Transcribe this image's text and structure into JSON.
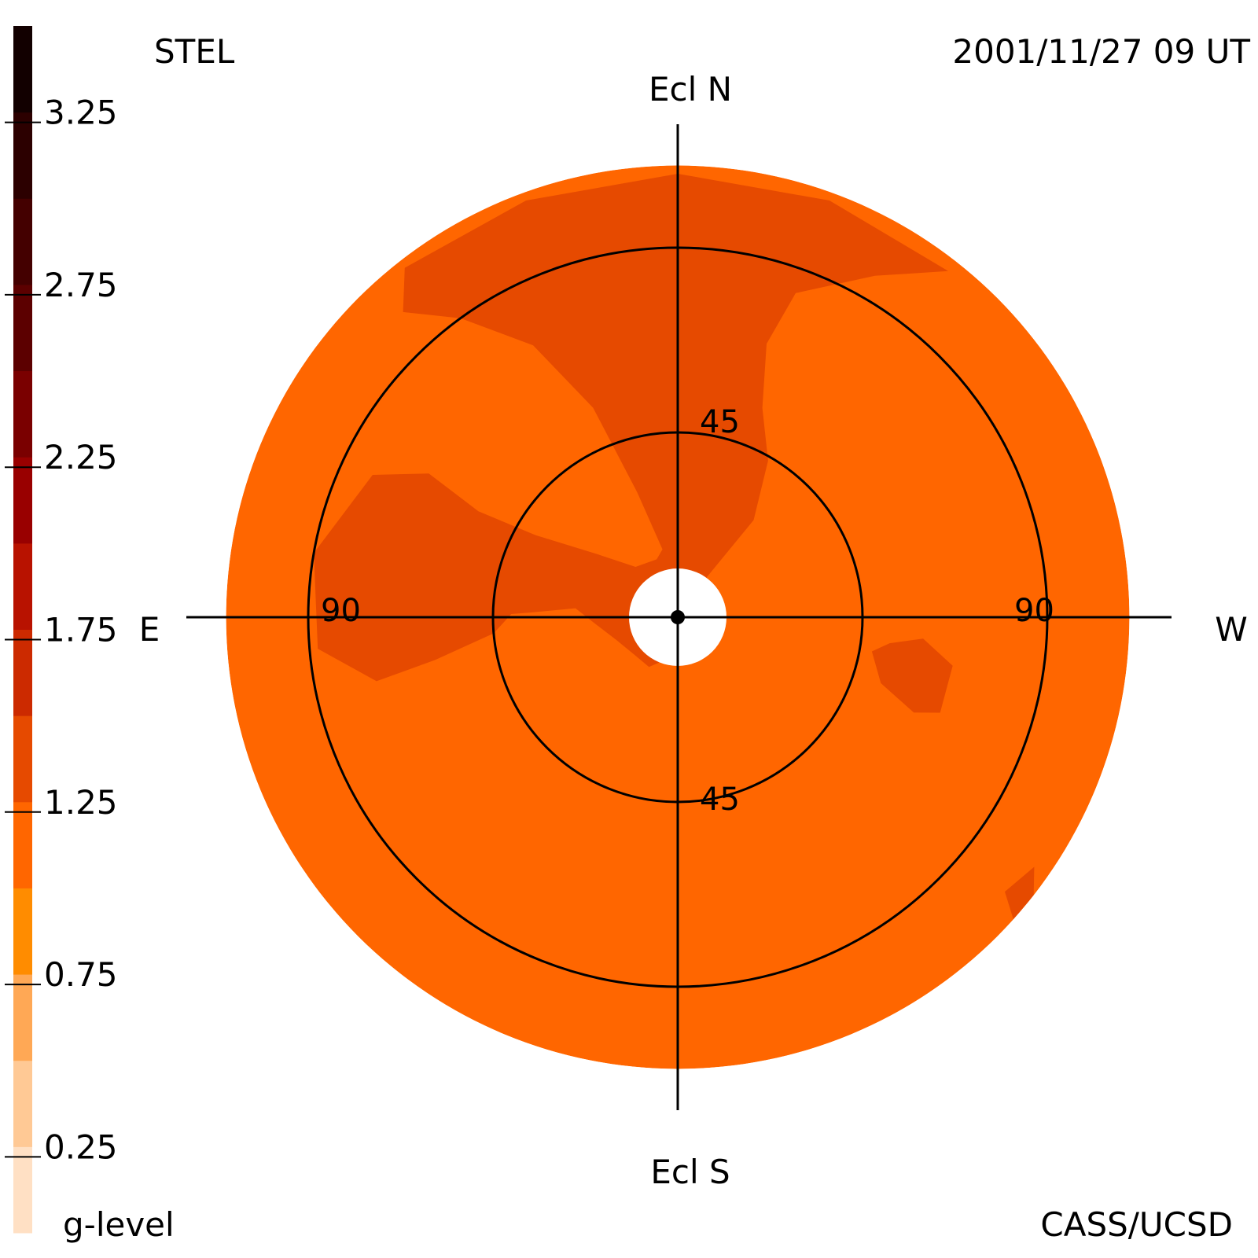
{
  "header": {
    "instrument": "STEL",
    "timestamp": "2001/11/27 09 UT"
  },
  "footer": {
    "credit": "CASS/UCSD"
  },
  "chart_data": {
    "type": "heatmap",
    "projection": "polar sky map (fisheye)",
    "directions": {
      "north": "Ecl N",
      "south": "Ecl S",
      "east": "E",
      "west": "W"
    },
    "elongation_labels": [
      {
        "value": "45",
        "side": "north"
      },
      {
        "value": "45",
        "side": "south"
      },
      {
        "value": "90",
        "side": "east"
      },
      {
        "value": "90",
        "side": "west"
      }
    ],
    "elongation_circles": [
      45,
      90
    ],
    "elongation_range": [
      0,
      110
    ],
    "colorbar": {
      "label": "g-level",
      "range": [
        0,
        3.5
      ],
      "tick_labels": [
        "3.25",
        "2.75",
        "2.25",
        "1.75",
        "1.25",
        "0.75",
        "0.25"
      ],
      "tick_values": [
        3.25,
        2.75,
        2.25,
        1.75,
        1.25,
        0.75,
        0.25
      ],
      "levels": [
        {
          "from": 0.0,
          "to": 0.25,
          "color": "#FFE0C4"
        },
        {
          "from": 0.25,
          "to": 0.5,
          "color": "#FFC995"
        },
        {
          "from": 0.5,
          "to": 0.75,
          "color": "#FFA855"
        },
        {
          "from": 0.75,
          "to": 1.0,
          "color": "#FF8C00"
        },
        {
          "from": 1.0,
          "to": 1.25,
          "color": "#FF6600"
        },
        {
          "from": 1.25,
          "to": 1.5,
          "color": "#E64A00"
        },
        {
          "from": 1.5,
          "to": 1.75,
          "color": "#CC2A00"
        },
        {
          "from": 1.75,
          "to": 2.0,
          "color": "#B81200"
        },
        {
          "from": 2.0,
          "to": 2.25,
          "color": "#990000"
        },
        {
          "from": 2.25,
          "to": 2.5,
          "color": "#7A0000"
        },
        {
          "from": 2.5,
          "to": 2.75,
          "color": "#5C0000"
        },
        {
          "from": 2.75,
          "to": 3.0,
          "color": "#440000"
        },
        {
          "from": 3.0,
          "to": 3.25,
          "color": "#2C0000"
        },
        {
          "from": 3.25,
          "to": 3.5,
          "color": "#120000"
        }
      ]
    },
    "background_level": 1.1,
    "regions": [
      {
        "name": "north-lobe",
        "level": 1.35,
        "polar": [
          [
            -38,
            108
          ],
          [
            -20,
            108
          ],
          [
            0,
            108
          ],
          [
            20,
            108
          ],
          [
            38,
            107
          ],
          [
            30,
            96
          ],
          [
            20,
            84
          ],
          [
            18,
            70
          ],
          [
            22,
            55
          ],
          [
            30,
            44
          ],
          [
            38,
            30
          ],
          [
            36,
            12
          ],
          [
            20,
            6
          ],
          [
            0,
            3
          ],
          [
            -8,
            12
          ],
          [
            -18,
            32
          ],
          [
            -22,
            55
          ],
          [
            -28,
            75
          ],
          [
            -36,
            90
          ],
          [
            -42,
            100
          ]
        ]
      },
      {
        "name": "east-arm",
        "level": 1.35,
        "polar": [
          [
            -5,
            20
          ],
          [
            -20,
            15
          ],
          [
            -40,
            16
          ],
          [
            -52,
            25
          ],
          [
            -60,
            40
          ],
          [
            -62,
            55
          ],
          [
            -60,
            70
          ],
          [
            -65,
            82
          ],
          [
            -80,
            90
          ],
          [
            -95,
            88
          ],
          [
            -102,
            75
          ],
          [
            -100,
            60
          ],
          [
            -95,
            45
          ],
          [
            -88,
            40
          ],
          [
            -80,
            40
          ],
          [
            -75,
            48
          ],
          [
            -72,
            62
          ],
          [
            -80,
            72
          ],
          [
            -88,
            70
          ],
          [
            -90,
            50
          ],
          [
            -88,
            35
          ],
          [
            -85,
            25
          ],
          [
            -95,
            20
          ],
          [
            -110,
            16
          ],
          [
            -130,
            14
          ],
          [
            -150,
            14
          ],
          [
            -170,
            10
          ],
          [
            -178,
            5
          ]
        ]
      },
      {
        "name": "west-spot",
        "level": 1.35,
        "polar": [
          [
            100,
            48
          ],
          [
            108,
            52
          ],
          [
            112,
            62
          ],
          [
            110,
            68
          ],
          [
            100,
            68
          ],
          [
            95,
            60
          ],
          [
            97,
            52
          ]
        ]
      },
      {
        "name": "rim-spot",
        "level": 1.35,
        "polar": [
          [
            125,
            106
          ],
          [
            128,
            110
          ],
          [
            132,
            110
          ],
          [
            130,
            104
          ]
        ]
      }
    ]
  }
}
